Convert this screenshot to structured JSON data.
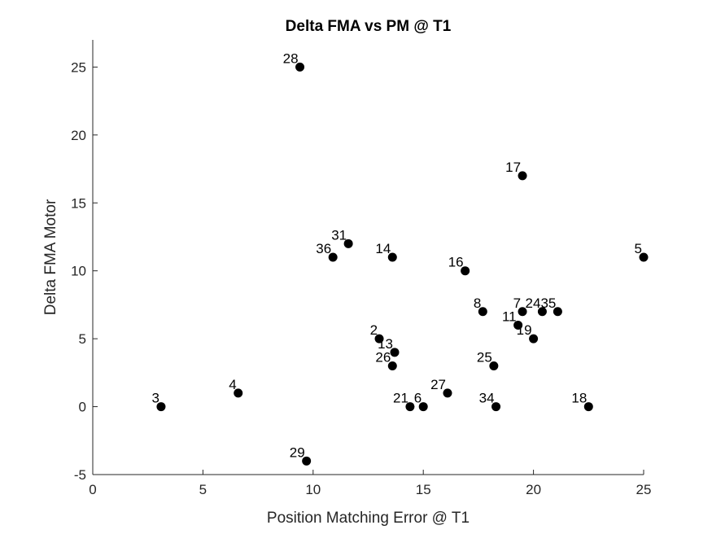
{
  "chart_data": {
    "type": "scatter",
    "title": "Delta FMA vs PM @ T1",
    "xlabel": "Position Matching Error @ T1",
    "ylabel": "Delta FMA Motor",
    "xlim": [
      0,
      25
    ],
    "ylim": [
      -5,
      27
    ],
    "xticks": [
      0,
      5,
      10,
      15,
      20,
      25
    ],
    "yticks": [
      -5,
      0,
      5,
      10,
      15,
      20,
      25
    ],
    "grid": false,
    "marker_color": "#000000",
    "points": [
      {
        "label": "28",
        "x": 9.4,
        "y": 25
      },
      {
        "label": "17",
        "x": 19.5,
        "y": 17
      },
      {
        "label": "31",
        "x": 11.6,
        "y": 12
      },
      {
        "label": "36",
        "x": 10.9,
        "y": 11
      },
      {
        "label": "14",
        "x": 13.6,
        "y": 11
      },
      {
        "label": "5",
        "x": 25.0,
        "y": 11
      },
      {
        "label": "16",
        "x": 16.9,
        "y": 10
      },
      {
        "label": "8",
        "x": 17.7,
        "y": 7
      },
      {
        "label": "7",
        "x": 19.5,
        "y": 7
      },
      {
        "label": "24",
        "x": 20.4,
        "y": 7
      },
      {
        "label": "35",
        "x": 21.1,
        "y": 7
      },
      {
        "label": "11",
        "x": 19.3,
        "y": 6
      },
      {
        "label": "19",
        "x": 20.0,
        "y": 5
      },
      {
        "label": "2",
        "x": 13.0,
        "y": 5
      },
      {
        "label": "13",
        "x": 13.7,
        "y": 4
      },
      {
        "label": "26",
        "x": 13.6,
        "y": 3
      },
      {
        "label": "25",
        "x": 18.2,
        "y": 3
      },
      {
        "label": "4",
        "x": 6.6,
        "y": 1
      },
      {
        "label": "27",
        "x": 16.1,
        "y": 1
      },
      {
        "label": "3",
        "x": 3.1,
        "y": 0
      },
      {
        "label": "21",
        "x": 14.4,
        "y": 0
      },
      {
        "label": "6",
        "x": 15.0,
        "y": 0
      },
      {
        "label": "34",
        "x": 18.3,
        "y": 0
      },
      {
        "label": "18",
        "x": 22.5,
        "y": 0
      },
      {
        "label": "29",
        "x": 9.7,
        "y": -4
      }
    ]
  }
}
